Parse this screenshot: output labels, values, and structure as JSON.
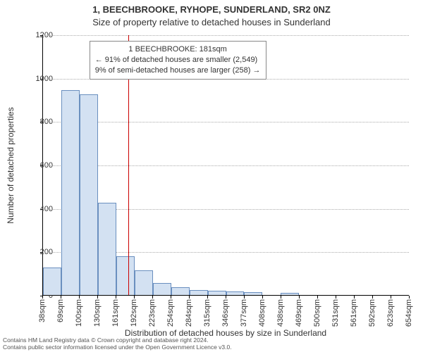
{
  "title1": "1, BEECHBROOKE, RYHOPE, SUNDERLAND, SR2 0NZ",
  "title2": "Size of property relative to detached houses in Sunderland",
  "xlabel": "Distribution of detached houses by size in Sunderland",
  "ylabel": "Number of detached properties",
  "chart": {
    "type": "histogram",
    "categories": [
      "38sqm",
      "69sqm",
      "100sqm",
      "130sqm",
      "161sqm",
      "192sqm",
      "223sqm",
      "254sqm",
      "284sqm",
      "315sqm",
      "346sqm",
      "377sqm",
      "408sqm",
      "438sqm",
      "469sqm",
      "500sqm",
      "531sqm",
      "561sqm",
      "592sqm",
      "623sqm",
      "654sqm"
    ],
    "values": [
      125,
      943,
      923,
      425,
      180,
      115,
      55,
      35,
      22,
      18,
      15,
      12,
      0,
      10,
      0,
      0,
      0,
      0,
      0,
      0
    ],
    "bar_fill": "#d3e1f2",
    "bar_stroke": "#6a8fbf",
    "ymax": 1200,
    "ytick_step": 200,
    "grid_color": "#aaaaaa",
    "background_color": "#ffffff",
    "label_fontsize": 11,
    "title_fontsize": 13
  },
  "marker": {
    "value_sqm": 181,
    "color": "#cc0000",
    "width": 1
  },
  "annotation": {
    "line1": "1 BEECHBROOKE: 181sqm",
    "line2": "← 91% of detached houses are smaller (2,549)",
    "line3": "9% of semi-detached houses are larger (258) →"
  },
  "footer": {
    "line1": "Contains HM Land Registry data © Crown copyright and database right 2024.",
    "line2": "Contains public sector information licensed under the Open Government Licence v3.0."
  }
}
